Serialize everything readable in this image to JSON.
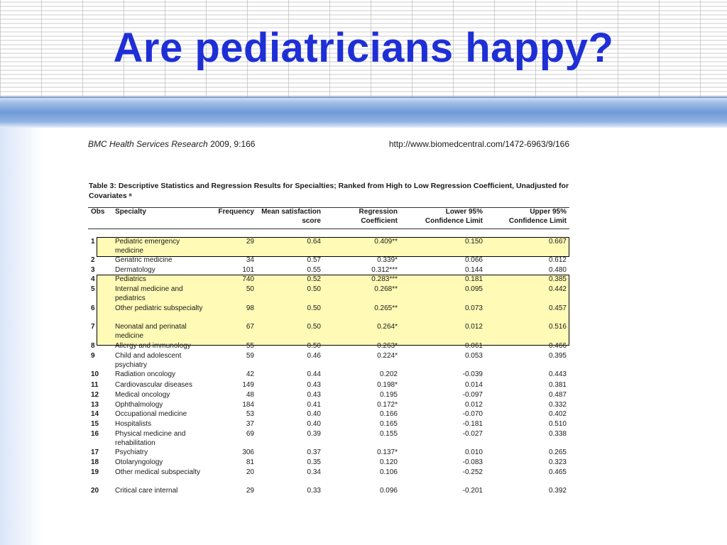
{
  "slide": {
    "title": "Are pediatricians happy?"
  },
  "document": {
    "journal_name": "BMC Health Services Research",
    "journal_ref": " 2009, 9:166",
    "url": "http://www.biomedcentral.com/1472-6963/9/166",
    "caption": "Table 3: Descriptive Statistics and Regression Results for Specialties; Ranked from High to Low Regression Coefficient, Unadjusted for Covariates ᵃ",
    "columns": {
      "obs": "Obs",
      "specialty": "Specialty",
      "frequency": "Frequency",
      "mean_l1": "Mean satisfaction",
      "mean_l2": "score",
      "reg_l1": "Regression",
      "reg_l2": "Coefficient",
      "low_l1": "Lower 95%",
      "low_l2": "Confidence Limit",
      "up_l1": "Upper 95%",
      "up_l2": "Confidence Limit"
    },
    "rows": [
      {
        "obs": "1",
        "specialty": "Pediatric emergency medicine",
        "frequency": "29",
        "mean": "0.64",
        "coef": "0.409**",
        "lower": "0.150",
        "upper": "0.667",
        "highlighted": true
      },
      {
        "obs": "2",
        "specialty": "Geriatric medicine",
        "frequency": "34",
        "mean": "0.57",
        "coef": "0.339*",
        "lower": "0.066",
        "upper": "0.612",
        "highlighted": false
      },
      {
        "obs": "3",
        "specialty": "Dermatology",
        "frequency": "101",
        "mean": "0.55",
        "coef": "0.312***",
        "lower": "0.144",
        "upper": "0.480",
        "highlighted": false
      },
      {
        "obs": "4",
        "specialty": "Pediatrics",
        "frequency": "740",
        "mean": "0.52",
        "coef": "0.283***",
        "lower": "0.181",
        "upper": "0.385",
        "highlighted": true
      },
      {
        "obs": "5",
        "specialty": "Internal medicine and pediatrics",
        "frequency": "50",
        "mean": "0.50",
        "coef": "0.268**",
        "lower": "0.095",
        "upper": "0.442",
        "highlighted": true
      },
      {
        "obs": "6",
        "specialty": "Other pediatric subspecialty",
        "frequency": "98",
        "mean": "0.50",
        "coef": "0.265**",
        "lower": "0.073",
        "upper": "0.457",
        "highlighted": true
      },
      {
        "obs": "7",
        "specialty": "Neonatal and perinatal medicine",
        "frequency": "67",
        "mean": "0.50",
        "coef": "0.264*",
        "lower": "0.012",
        "upper": "0.516",
        "highlighted": true
      },
      {
        "obs": "8",
        "specialty": "Allergy and immunology",
        "frequency": "55",
        "mean": "0.50",
        "coef": "0.263*",
        "lower": "0.061",
        "upper": "0.466",
        "highlighted": false
      },
      {
        "obs": "9",
        "specialty": "Child and adolescent psychiatry",
        "frequency": "59",
        "mean": "0.46",
        "coef": "0.224*",
        "lower": "0.053",
        "upper": "0.395",
        "highlighted": false
      },
      {
        "obs": "10",
        "specialty": "Radiation oncology",
        "frequency": "42",
        "mean": "0.44",
        "coef": "0.202",
        "lower": "-0.039",
        "upper": "0.443",
        "highlighted": false
      },
      {
        "obs": "11",
        "specialty": "Cardiovascular diseases",
        "frequency": "149",
        "mean": "0.43",
        "coef": "0.198*",
        "lower": "0.014",
        "upper": "0.381",
        "highlighted": false
      },
      {
        "obs": "12",
        "specialty": "Medical oncology",
        "frequency": "48",
        "mean": "0.43",
        "coef": "0.195",
        "lower": "-0.097",
        "upper": "0.487",
        "highlighted": false
      },
      {
        "obs": "13",
        "specialty": "Ophthalmology",
        "frequency": "184",
        "mean": "0.41",
        "coef": "0.172*",
        "lower": "0.012",
        "upper": "0.332",
        "highlighted": false
      },
      {
        "obs": "14",
        "specialty": "Occupational medicine",
        "frequency": "53",
        "mean": "0.40",
        "coef": "0.166",
        "lower": "-0.070",
        "upper": "0.402",
        "highlighted": false
      },
      {
        "obs": "15",
        "specialty": "Hospitalists",
        "frequency": "37",
        "mean": "0.40",
        "coef": "0.165",
        "lower": "-0.181",
        "upper": "0.510",
        "highlighted": false
      },
      {
        "obs": "16",
        "specialty": "Physical medicine and rehabilitation",
        "frequency": "69",
        "mean": "0.39",
        "coef": "0.155",
        "lower": "-0.027",
        "upper": "0.338",
        "highlighted": false
      },
      {
        "obs": "17",
        "specialty": "Psychiatry",
        "frequency": "306",
        "mean": "0.37",
        "coef": "0.137*",
        "lower": "0.010",
        "upper": "0.265",
        "highlighted": false
      },
      {
        "obs": "18",
        "specialty": "Otolaryngology",
        "frequency": "81",
        "mean": "0.35",
        "coef": "0.120",
        "lower": "-0.083",
        "upper": "0.323",
        "highlighted": false
      },
      {
        "obs": "19",
        "specialty": "Other medical subspecialty",
        "frequency": "20",
        "mean": "0.34",
        "coef": "0.106",
        "lower": "-0.252",
        "upper": "0.465",
        "highlighted": false
      },
      {
        "obs": "20",
        "specialty": "Critical care internal",
        "frequency": "29",
        "mean": "0.33",
        "coef": "0.096",
        "lower": "-0.201",
        "upper": "0.392",
        "highlighted": false
      }
    ]
  },
  "colors": {
    "title": "#1f2fd6",
    "highlight": "#fff578"
  }
}
